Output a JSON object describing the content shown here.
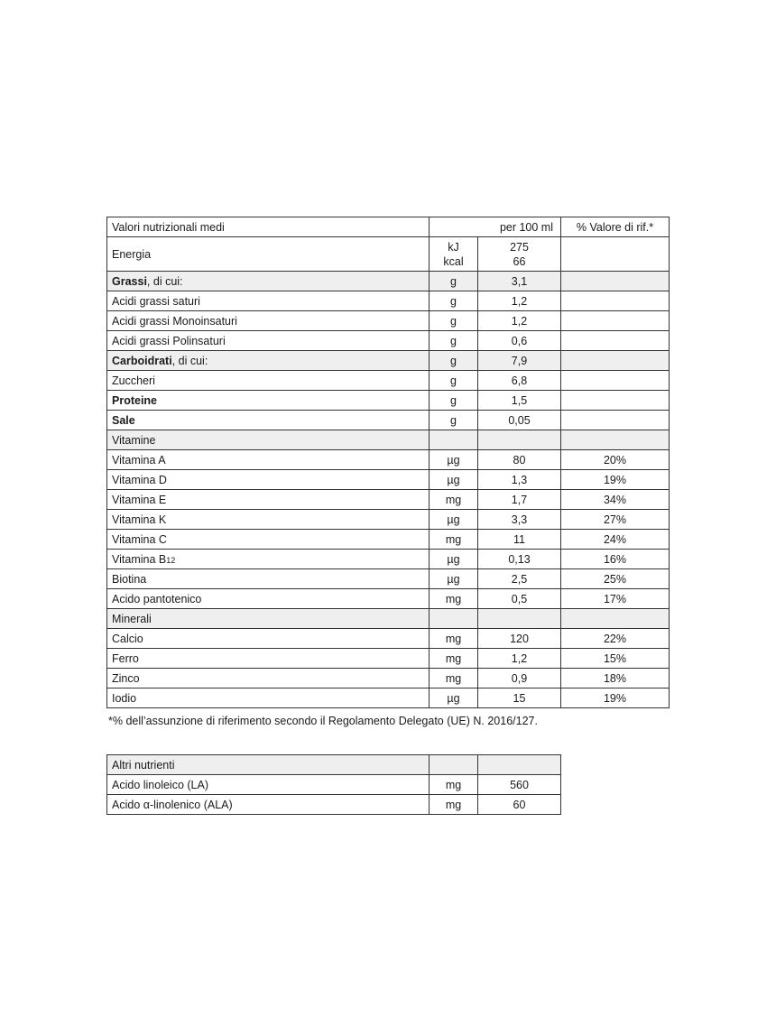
{
  "main_table": {
    "header": {
      "label": "Valori nutrizionali medi",
      "per": "per 100 ml",
      "ref": "% Valore di rif.*"
    },
    "energy": {
      "label": "Energia",
      "unit1": "kJ",
      "unit2": "kcal",
      "value1": "275",
      "value2": "66",
      "ref": ""
    },
    "rows": [
      {
        "bold": "Grassi",
        "label": ", di cui:",
        "unit": "g",
        "value": "3,1",
        "ref": "",
        "shaded": true
      },
      {
        "bold": "",
        "label": "Acidi grassi saturi",
        "unit": "g",
        "value": "1,2",
        "ref": ""
      },
      {
        "bold": "",
        "label": "Acidi grassi Monoinsaturi",
        "unit": "g",
        "value": "1,2",
        "ref": ""
      },
      {
        "bold": "",
        "label": "Acidi grassi Polinsaturi",
        "unit": "g",
        "value": "0,6",
        "ref": ""
      },
      {
        "bold": "Carboidrati",
        "label": ", di cui:",
        "unit": "g",
        "value": "7,9",
        "ref": "",
        "shaded": true
      },
      {
        "bold": "",
        "label": "Zuccheri",
        "unit": "g",
        "value": "6,8",
        "ref": ""
      },
      {
        "bold": "Proteine",
        "label": "",
        "unit": "g",
        "value": "1,5",
        "ref": ""
      },
      {
        "bold": "Sale",
        "label": "",
        "unit": "g",
        "value": "0,05",
        "ref": ""
      },
      {
        "bold": "",
        "label": "Vitamine",
        "unit": "",
        "value": "",
        "ref": "",
        "shaded": true
      },
      {
        "bold": "",
        "label": "Vitamina A",
        "unit": "µg",
        "value": "80",
        "ref": "20%"
      },
      {
        "bold": "",
        "label": "Vitamina D",
        "unit": "µg",
        "value": "1,3",
        "ref": "19%"
      },
      {
        "bold": "",
        "label": "Vitamina E",
        "unit": "mg",
        "value": "1,7",
        "ref": "34%"
      },
      {
        "bold": "",
        "label": "Vitamina K",
        "unit": "µg",
        "value": "3,3",
        "ref": "27%"
      },
      {
        "bold": "",
        "label": "Vitamina C",
        "unit": "mg",
        "value": "11",
        "ref": "24%"
      },
      {
        "bold": "",
        "label": "Vitamina B",
        "sub": "12",
        "unit": "µg",
        "value": "0,13",
        "ref": "16%"
      },
      {
        "bold": "",
        "label": "Biotina",
        "unit": "µg",
        "value": "2,5",
        "ref": "25%"
      },
      {
        "bold": "",
        "label": "Acido pantotenico",
        "unit": "mg",
        "value": "0,5",
        "ref": "17%"
      },
      {
        "bold": "",
        "label": "Minerali",
        "unit": "",
        "value": "",
        "ref": "",
        "shaded": true
      },
      {
        "bold": "",
        "label": "Calcio",
        "unit": "mg",
        "value": "120",
        "ref": "22%"
      },
      {
        "bold": "",
        "label": "Ferro",
        "unit": "mg",
        "value": "1,2",
        "ref": "15%"
      },
      {
        "bold": "",
        "label": "Zinco",
        "unit": "mg",
        "value": "0,9",
        "ref": "18%"
      },
      {
        "bold": "",
        "label": "Iodio",
        "unit": "µg",
        "value": "15",
        "ref": "19%"
      }
    ]
  },
  "footnote": "*% dell’assunzione di riferimento secondo il Regolamento Delegato (UE) N. 2016/127.",
  "other_table": {
    "rows": [
      {
        "label": "Altri nutrienti",
        "unit": "",
        "value": "",
        "shaded": true
      },
      {
        "label": "Acido linoleico (LA)",
        "unit": "mg",
        "value": "560"
      },
      {
        "label": "Acido α-linolenico (ALA)",
        "unit": "mg",
        "value": "60"
      }
    ]
  }
}
